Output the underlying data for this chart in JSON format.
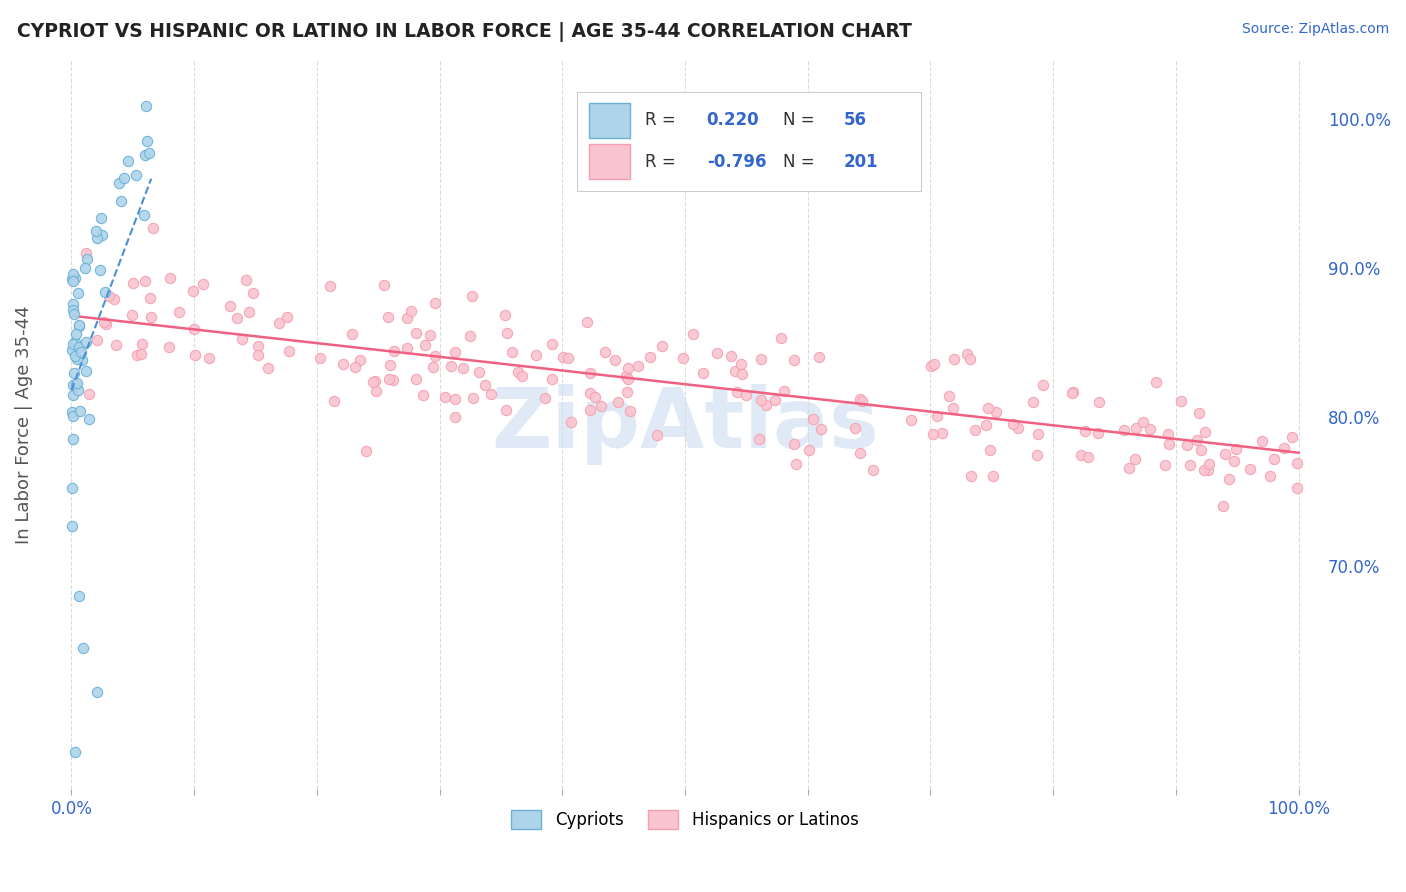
{
  "title": "CYPRIOT VS HISPANIC OR LATINO IN LABOR FORCE | AGE 35-44 CORRELATION CHART",
  "source_text": "Source: ZipAtlas.com",
  "ylabel": "In Labor Force | Age 35-44",
  "xlim": [
    -0.02,
    1.02
  ],
  "ylim": [
    0.55,
    1.04
  ],
  "right_yticks": [
    0.7,
    0.8,
    0.9,
    1.0
  ],
  "right_yticklabels": [
    "70.0%",
    "80.0%",
    "90.0%",
    "100.0%"
  ],
  "blue_face": "#aed4ea",
  "blue_edge": "#6aafd6",
  "pink_face": "#f9c4d0",
  "pink_edge": "#f4a0b0",
  "trend_blue": "#4a90d9",
  "trend_pink": "#f06080",
  "watermark": "ZipAtlas",
  "watermark_color": "#ccddf0",
  "background_color": "#ffffff",
  "grid_color": "#cccccc",
  "title_color": "#222222",
  "axis_label_color": "#555555",
  "tick_label_color": "#3366cc",
  "pink_trend_x": [
    0.0,
    1.0
  ],
  "pink_trend_y": [
    0.868,
    0.776
  ],
  "blue_trend_x": [
    0.0,
    0.065
  ],
  "blue_trend_y": [
    0.818,
    0.96
  ]
}
